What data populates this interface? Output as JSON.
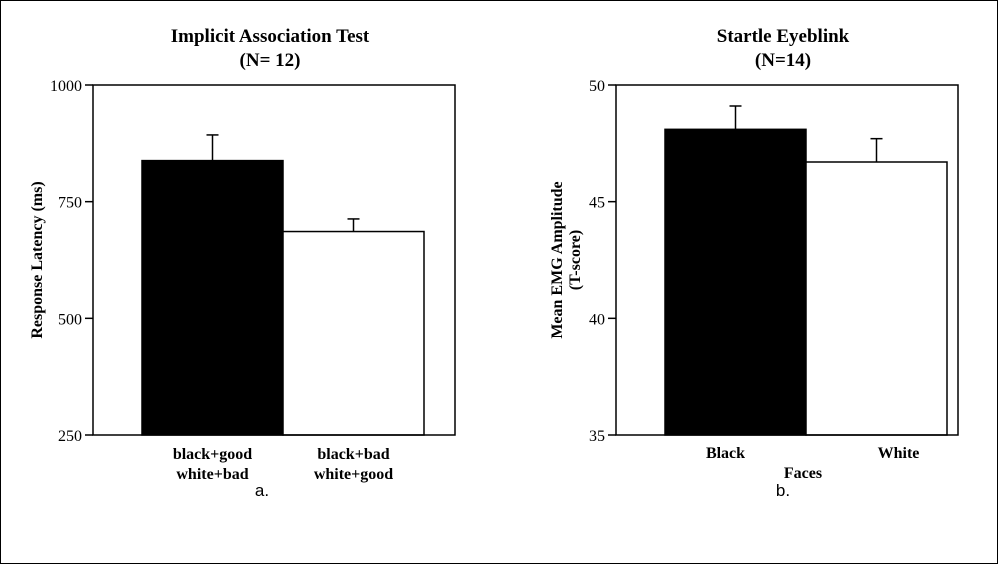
{
  "chart_data": [
    {
      "type": "bar",
      "title": "Implicit Association Test",
      "subtitle": "(N= 12)",
      "ylabel": "Response Latency (ms)",
      "xlabel": "",
      "categories": [
        [
          "black+good",
          "white+bad"
        ],
        [
          "black+bad",
          "white+good"
        ]
      ],
      "values": [
        838,
        686
      ],
      "errors": [
        55,
        27
      ],
      "colors": [
        "#000000",
        "#ffffff"
      ],
      "ylim": [
        250,
        1000
      ],
      "yticks": [
        250,
        500,
        750,
        1000
      ],
      "panel_label": "a.",
      "grid": false
    },
    {
      "type": "bar",
      "title": "Startle Eyeblink",
      "subtitle": "(N=14)",
      "ylabel": "Mean EMG Amplitude",
      "ylabel2": "(T-score)",
      "xlabel": "Faces",
      "categories": [
        [
          "Black"
        ],
        [
          "White"
        ]
      ],
      "values": [
        48.1,
        46.7
      ],
      "errors": [
        1.0,
        1.0
      ],
      "colors": [
        "#000000",
        "#ffffff"
      ],
      "ylim": [
        35,
        50
      ],
      "yticks": [
        35,
        40,
        45,
        50
      ],
      "panel_label": "b.",
      "grid": false
    }
  ]
}
